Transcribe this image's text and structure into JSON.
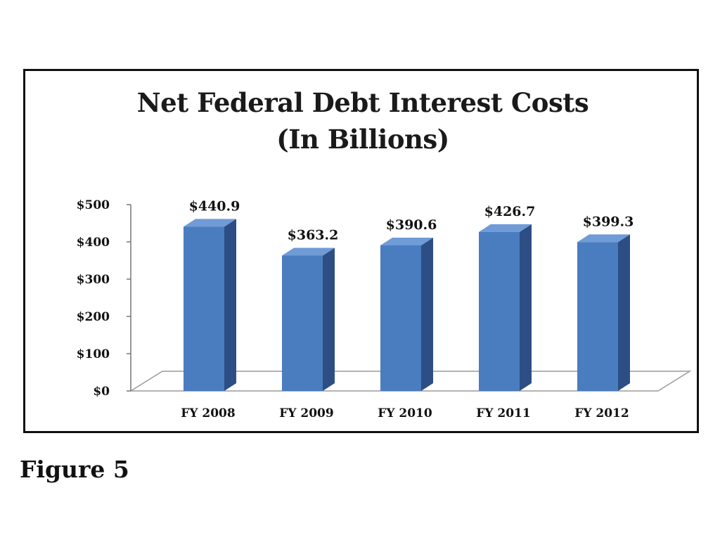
{
  "chart_data": {
    "type": "bar",
    "title": [
      "Net Federal Debt Interest Costs",
      "(In Billions)"
    ],
    "categories": [
      "FY 2008",
      "FY 2009",
      "FY 2010",
      "FY 2011",
      "FY 2012"
    ],
    "values": [
      440.9,
      363.2,
      390.6,
      426.7,
      399.3
    ],
    "data_labels": [
      "$440.9",
      "$363.2",
      "$390.6",
      "$426.7",
      "$399.3"
    ],
    "y_ticks": [
      "$0",
      "$100",
      "$200",
      "$300",
      "$400",
      "$500"
    ],
    "ylim": [
      0,
      500
    ],
    "style": "3d",
    "grid": false,
    "legend": "none",
    "colors": {
      "bar_front": "#4a7cc0",
      "bar_side": "#2c4e84",
      "bar_top": "#6f9bd6"
    }
  },
  "caption": "Figure 5"
}
